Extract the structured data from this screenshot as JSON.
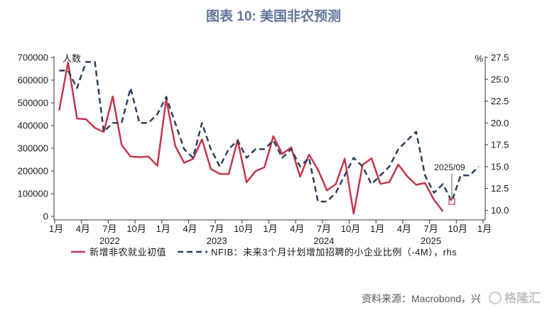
{
  "chart_data": {
    "type": "line",
    "title": "图表 10: 美国非农预测",
    "legend_position": "bottom",
    "grid": false,
    "xlim": [
      "2022-01",
      "2026-01"
    ],
    "x": [
      "2022-01",
      "2022-02",
      "2022-03",
      "2022-04",
      "2022-05",
      "2022-06",
      "2022-07",
      "2022-08",
      "2022-09",
      "2022-10",
      "2022-11",
      "2022-12",
      "2023-01",
      "2023-02",
      "2023-03",
      "2023-04",
      "2023-05",
      "2023-06",
      "2023-07",
      "2023-08",
      "2023-09",
      "2023-10",
      "2023-11",
      "2023-12",
      "2024-01",
      "2024-02",
      "2024-03",
      "2024-04",
      "2024-05",
      "2024-06",
      "2024-07",
      "2024-08",
      "2024-09",
      "2024-10",
      "2024-11",
      "2024-12",
      "2025-01",
      "2025-02",
      "2025-03",
      "2025-04",
      "2025-05",
      "2025-06",
      "2025-07",
      "2025-08",
      "2025-09",
      "2025-10",
      "2025-11",
      "2025-12"
    ],
    "x_ticks": [
      {
        "date": "2022-01",
        "label": "1月"
      },
      {
        "date": "2022-04",
        "label": "4月"
      },
      {
        "date": "2022-07",
        "label": "7月"
      },
      {
        "date": "2022-10",
        "label": "10月"
      },
      {
        "date": "2023-01",
        "label": "1月"
      },
      {
        "date": "2023-04",
        "label": "4月"
      },
      {
        "date": "2023-07",
        "label": "7月"
      },
      {
        "date": "2023-10",
        "label": "10月"
      },
      {
        "date": "2024-01",
        "label": "1月"
      },
      {
        "date": "2024-04",
        "label": "4月"
      },
      {
        "date": "2024-07",
        "label": "7月"
      },
      {
        "date": "2024-10",
        "label": "10月"
      },
      {
        "date": "2025-01",
        "label": "1月"
      },
      {
        "date": "2025-04",
        "label": "4月"
      },
      {
        "date": "2025-07",
        "label": "7月"
      },
      {
        "date": "2025-10",
        "label": "10月"
      },
      {
        "date": "2026-01",
        "label": "1月"
      }
    ],
    "year_labels": [
      {
        "date": "2022-07",
        "label": "2022"
      },
      {
        "date": "2023-07",
        "label": "2023"
      },
      {
        "date": "2024-07",
        "label": "2024"
      },
      {
        "date": "2025-07",
        "label": "2025"
      }
    ],
    "left_axis": {
      "unit_label": "人数",
      "ylim": [
        0,
        700000
      ],
      "ticks": [
        0,
        100000,
        200000,
        300000,
        400000,
        500000,
        600000,
        700000
      ],
      "tick_labels": [
        "0",
        "100000",
        "200000",
        "300000",
        "400000",
        "500000",
        "600000",
        "700000"
      ]
    },
    "right_axis": {
      "unit_label": "%",
      "ylim": [
        9.3,
        27.5
      ],
      "ticks": [
        10,
        12.5,
        15,
        17.5,
        20,
        22.5,
        25,
        27.5
      ],
      "tick_labels": [
        "10.0",
        "12.5",
        "15.0",
        "17.5",
        "20.0",
        "22.5",
        "25.0",
        "27.5"
      ]
    },
    "series": [
      {
        "name": "新增非农就业初值",
        "secondary_axis": false,
        "dashed": false,
        "color": "#c4364b",
        "values": [
          467000,
          678000,
          431000,
          428000,
          390000,
          372000,
          528000,
          315000,
          263000,
          261000,
          263000,
          223000,
          517000,
          311000,
          236000,
          253000,
          339000,
          209000,
          187000,
          187000,
          336000,
          150000,
          199000,
          216000,
          353000,
          275000,
          303000,
          175000,
          272000,
          206000,
          114000,
          142000,
          254000,
          12000,
          227000,
          256000,
          143000,
          151000,
          228000,
          177000,
          139000,
          147000,
          73000,
          22000,
          null,
          null,
          null,
          null
        ]
      },
      {
        "name": "NFIB：未来3个月计划增加招聘的小企业比例（-4M），rhs",
        "secondary_axis": true,
        "dashed": true,
        "color": "#2e405e",
        "values": [
          26,
          26,
          24,
          27,
          27,
          19,
          20,
          20,
          24,
          20,
          20,
          21,
          23,
          20,
          17,
          16,
          20,
          17,
          15,
          17,
          18,
          16,
          17,
          17,
          18,
          16,
          17,
          15,
          16,
          11,
          11,
          12,
          14,
          16,
          15,
          13,
          14,
          15,
          17,
          18,
          19,
          14,
          12,
          13,
          11,
          14,
          14,
          15
        ]
      }
    ],
    "annotations": [
      {
        "text": "2025/09",
        "x": "2025-09",
        "y": 11,
        "secondary_axis": true,
        "marker_color": "#d6404f"
      }
    ]
  },
  "source": "资料来源：Macrobond，兴",
  "watermark": "格隆汇"
}
